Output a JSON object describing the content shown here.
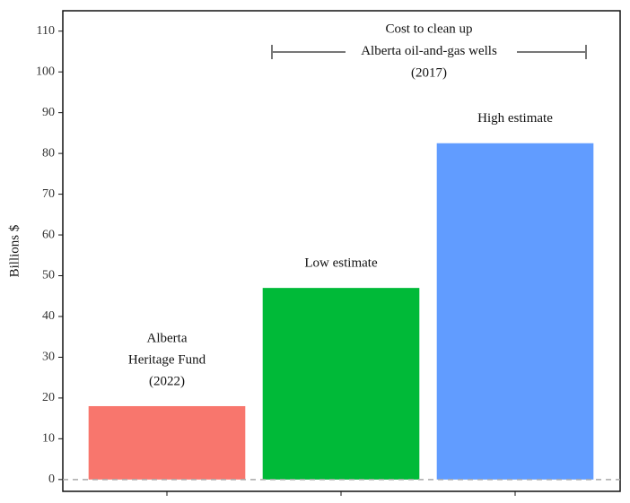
{
  "chart_data": {
    "type": "bar",
    "ylabel": "Billions $",
    "categories": [
      null,
      null,
      null
    ],
    "values": [
      18,
      47,
      82.5
    ],
    "colors": [
      "#f8766d",
      "#00ba38",
      "#619cff"
    ],
    "bar_labels": [
      [
        "Alberta",
        "Heritage Fund",
        "(2022)"
      ],
      [
        "Low estimate"
      ],
      [
        "High estimate"
      ]
    ],
    "annotation": [
      "Cost to clean up",
      "Alberta oil-and-gas wells",
      "(2017)"
    ],
    "reference_line": 0,
    "ylim": [
      -2.9,
      115
    ],
    "yticks": [
      0,
      10,
      20,
      30,
      40,
      50,
      60,
      70,
      80,
      90,
      100,
      110
    ]
  }
}
